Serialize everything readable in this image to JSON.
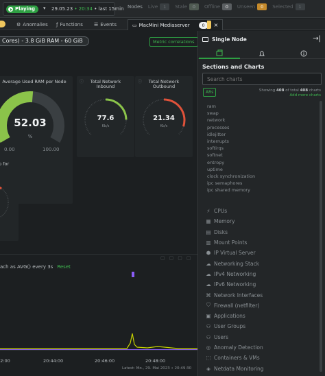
{
  "topbar": {
    "play_label": "Playing",
    "date": "29.05.23",
    "time": "20:34",
    "range": "last 15min",
    "nodes_label": "Nodes",
    "live_label": "Live",
    "live_count": "1",
    "stale_label": "Stale",
    "stale_count": "0",
    "offline_label": "Offline",
    "offline_count": "0",
    "unseen_label": "Unseen",
    "unseen_count": "0",
    "selected_label": "Selected",
    "selected_count": "1"
  },
  "tabs": {
    "anomalies": "Anomalies",
    "functions": "Functions",
    "events": "Events",
    "active_label": "MacMini Mediaserver",
    "active_count": "0"
  },
  "main": {
    "cores_pill": "Cores) - 3.8 GiB RAM - 60 GiB",
    "metric_button": "Metric correlations",
    "ram_card": {
      "title": "Average Used RAM per Node",
      "value": "52.03",
      "unit": "%",
      "min": "0.00",
      "max": "100.00",
      "fraction": 0.52
    },
    "net_in": {
      "title_line1": "Total Network",
      "title_line2": "Inbound",
      "value": "77.6",
      "unit": "Kb/s",
      "fraction": 0.33
    },
    "net_out": {
      "title_line1": "Total Network",
      "title_line2": "Outbound",
      "value": "21.34",
      "unit": "Kb/s",
      "fraction": 0.4
    },
    "partial_card_title": "p for",
    "agg_text": "ach as AVG() every 3s",
    "reset": "Reset",
    "x_ticks": [
      "20:44:00",
      "20:46:00",
      "20:48:00",
      ":2:00"
    ],
    "latest": "Latest: Mo., 29. Mai 2023 • 20:49:30"
  },
  "panel": {
    "title": "Single Node",
    "sections_title": "Sections and Charts",
    "search_placeholder": "Search charts",
    "ars_label": "ARs",
    "showing_text_1": "Showing",
    "showing_count": "408",
    "showing_text_2": "of total",
    "showing_total": "408",
    "showing_text_3": "charts",
    "add_more": "Add more charts",
    "sub_items": [
      "ram",
      "swap",
      "network",
      "processes",
      "idlejitter",
      "interrupts",
      "softirqs",
      "softnet",
      "entropy",
      "uptime",
      "clock synchronization",
      "ipc semaphores",
      "ipc shared memory"
    ],
    "sections": [
      {
        "label": "CPUs",
        "icon": "cpu-icon"
      },
      {
        "label": "Memory",
        "icon": "memory-icon"
      },
      {
        "label": "Disks",
        "icon": "disk-icon"
      },
      {
        "label": "Mount Points",
        "icon": "mount-icon"
      },
      {
        "label": "IP Virtual Server",
        "icon": "ip-icon"
      },
      {
        "label": "Networking Stack",
        "icon": "cloud-icon"
      },
      {
        "label": "IPv4 Networking",
        "icon": "ipv4-icon"
      },
      {
        "label": "IPv6 Networking",
        "icon": "ipv6-icon"
      },
      {
        "label": "Network Interfaces",
        "icon": "network-icon"
      },
      {
        "label": "Firewall (netfilter)",
        "icon": "shield-icon"
      },
      {
        "label": "Applications",
        "icon": "apps-icon"
      },
      {
        "label": "User Groups",
        "icon": "user-groups-icon"
      },
      {
        "label": "Users",
        "icon": "users-icon"
      },
      {
        "label": "Anomaly Detection",
        "icon": "anomaly-icon"
      },
      {
        "label": "Containers & VMs",
        "icon": "container-icon"
      },
      {
        "label": "Netdata Monitoring",
        "icon": "netdata-icon"
      }
    ]
  },
  "colors": {
    "accent": "#2ea043",
    "gauge_green": "#8bc34a",
    "gauge_red": "#e0523a",
    "unseen": "#c58a2b",
    "chart_line": "#c8d400",
    "chart_purple": "#8a5cf6"
  }
}
